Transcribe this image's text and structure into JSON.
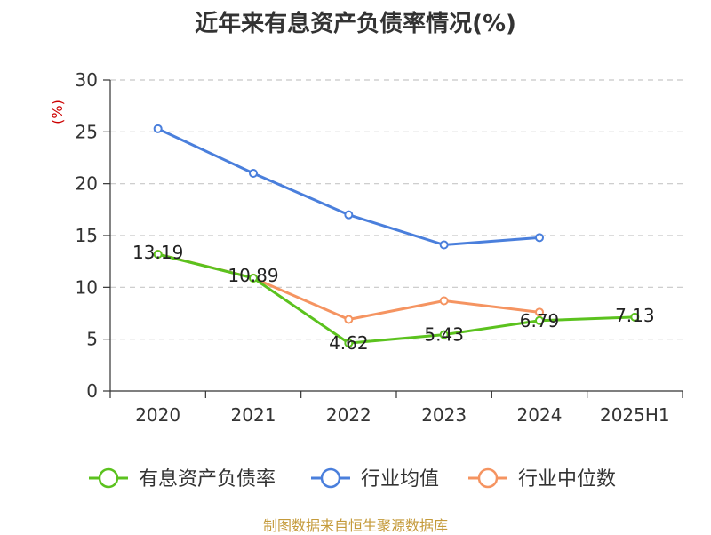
{
  "chart_data": {
    "type": "line",
    "title": "近年来有息资产负债率情况(%)",
    "ylabel": "(%)",
    "xlabel": "",
    "categories": [
      "2020",
      "2021",
      "2022",
      "2023",
      "2024",
      "2025H1"
    ],
    "ylim": [
      0,
      30
    ],
    "yticks": [
      0,
      5,
      10,
      15,
      20,
      25,
      30
    ],
    "grid": "horizontal-dashed",
    "legend_position": "bottom",
    "series": [
      {
        "name": "有息资产负债率",
        "color": "#5bc21e",
        "values": [
          13.19,
          10.89,
          4.62,
          5.43,
          6.79,
          7.13
        ],
        "labels": [
          "13.19",
          "10.89",
          "4.62",
          "5.43",
          "6.79",
          "7.13"
        ]
      },
      {
        "name": "行业均值",
        "color": "#4a7fdc",
        "values": [
          25.3,
          21.0,
          17.0,
          14.1,
          14.8,
          null
        ]
      },
      {
        "name": "行业中位数",
        "color": "#f59461",
        "values": [
          13.2,
          10.9,
          6.9,
          8.7,
          7.6,
          null
        ]
      }
    ]
  },
  "source": "制图数据来自恒生聚源数据库"
}
